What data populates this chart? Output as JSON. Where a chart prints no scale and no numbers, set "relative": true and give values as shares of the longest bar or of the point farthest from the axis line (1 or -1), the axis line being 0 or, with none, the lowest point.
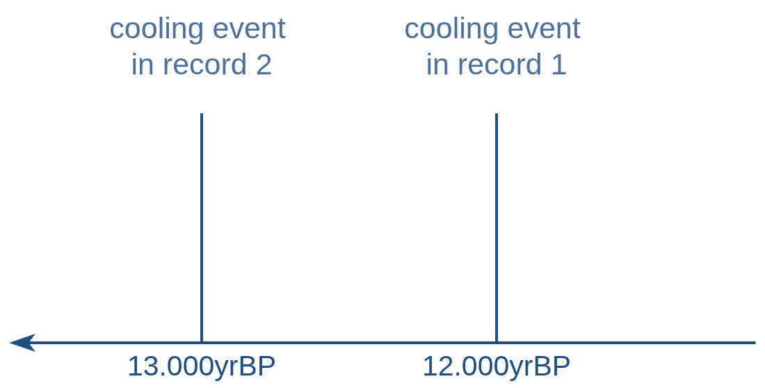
{
  "chart_data": {
    "type": "bar",
    "relative": true,
    "categories": [
      null,
      null,
      "13.000yrBP",
      null,
      null,
      null,
      "12.000yrBP",
      null,
      null,
      null
    ],
    "values": [
      null,
      null,
      1,
      null,
      null,
      null,
      1,
      null,
      null,
      null
    ],
    "color": "#1f4e84",
    "annotations": [
      {
        "text": "cooling event in record 2",
        "x": "13.000yrBP",
        "y": 1
      },
      {
        "text": "cooling event in record 1",
        "x": "12.000yrBP",
        "y": 1
      }
    ]
  }
}
